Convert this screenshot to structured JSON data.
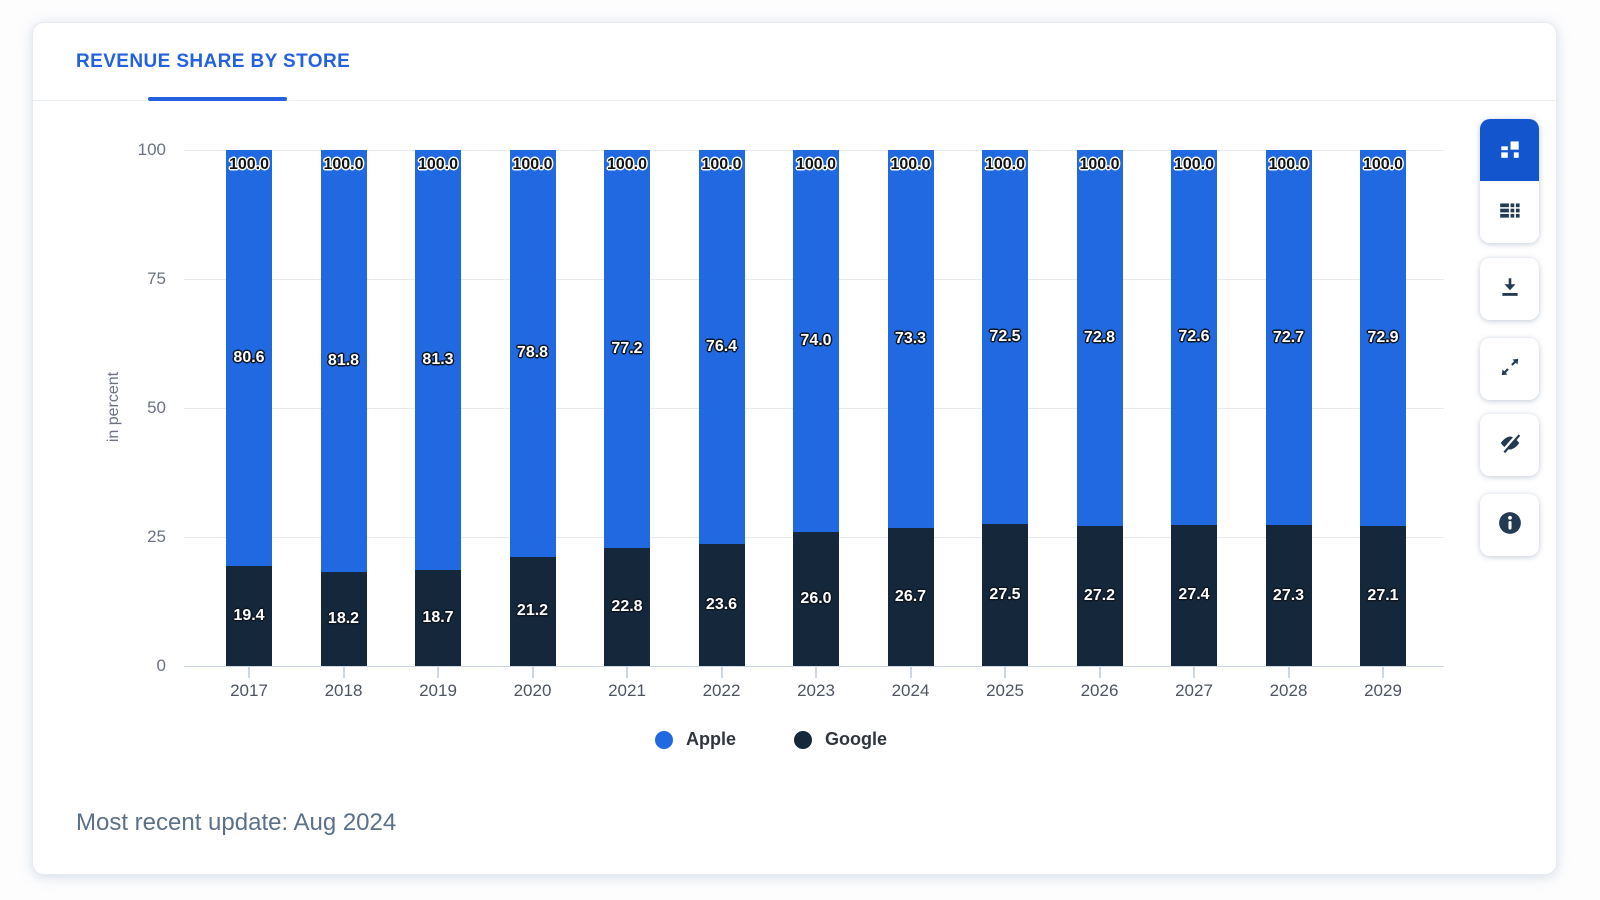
{
  "header": {
    "tab_label": "REVENUE SHARE BY STORE"
  },
  "chart_data": {
    "type": "bar",
    "stacked": true,
    "title": "REVENUE SHARE BY STORE",
    "categories": [
      2017,
      2018,
      2019,
      2020,
      2021,
      2022,
      2023,
      2024,
      2025,
      2026,
      2027,
      2028,
      2029
    ],
    "series": [
      {
        "name": "Apple",
        "color": "#2069e0",
        "values": [
          80.6,
          81.8,
          81.3,
          78.8,
          77.2,
          76.4,
          74.0,
          73.3,
          72.5,
          72.8,
          72.6,
          72.7,
          72.9
        ]
      },
      {
        "name": "Google",
        "color": "#15273a",
        "values": [
          19.4,
          18.2,
          18.7,
          21.2,
          22.8,
          23.6,
          26.0,
          26.7,
          27.5,
          27.2,
          27.4,
          27.3,
          27.1
        ]
      }
    ],
    "totals": [
      100.0,
      100.0,
      100.0,
      100.0,
      100.0,
      100.0,
      100.0,
      100.0,
      100.0,
      100.0,
      100.0,
      100.0,
      100.0
    ],
    "ylabel": "in percent",
    "xlabel": "",
    "yticks": [
      0,
      25,
      50,
      75,
      100
    ],
    "ylim": [
      0,
      100
    ],
    "grid": true,
    "legend_position": "bottom"
  },
  "legend": {
    "items": [
      {
        "label": "Apple"
      },
      {
        "label": "Google"
      }
    ]
  },
  "footer": {
    "update_text": "Most recent update: Aug 2024"
  },
  "toolbar": {
    "active_button": "chart-view",
    "buttons": [
      "chart-view-icon",
      "table-view-icon",
      "download-icon",
      "fullscreen-icon",
      "hide-value-labels-icon",
      "info-icon"
    ]
  },
  "colors": {
    "accent_blue": "#2361df",
    "toolbar_active_blue": "#1355cc",
    "icon_navy": "#223a52",
    "apple_bar": "#2069e0",
    "google_bar": "#15273a"
  }
}
